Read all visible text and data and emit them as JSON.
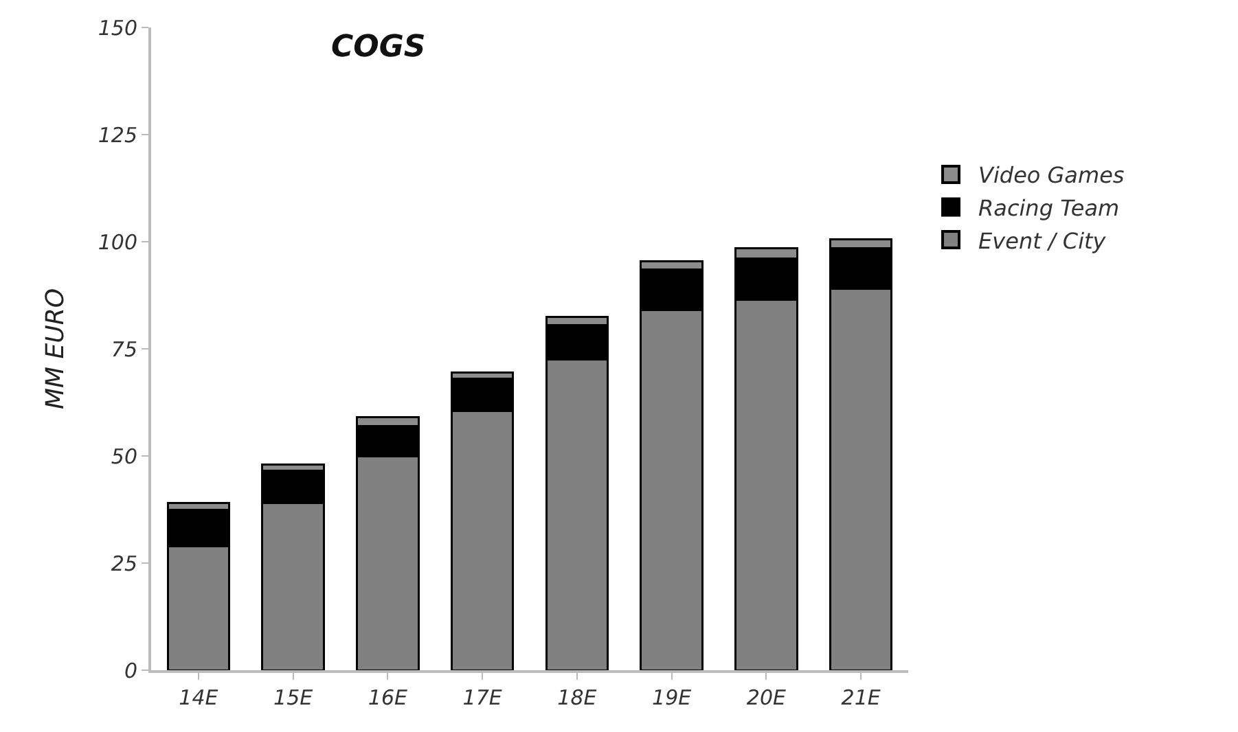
{
  "chart_data": {
    "type": "bar",
    "title": "COGS",
    "ylabel": "MM EURO",
    "stacked": true,
    "categories": [
      "14E",
      "15E",
      "16E",
      "17E",
      "18E",
      "19E",
      "20E",
      "21E"
    ],
    "series": [
      {
        "name": "Event / City",
        "color": "#808080",
        "values": [
          29,
          39,
          50,
          60.5,
          72.5,
          84,
          86.5,
          89
        ]
      },
      {
        "name": "Racing Team",
        "color": "#000000",
        "values": [
          8.5,
          7.5,
          7,
          7.5,
          8,
          9.5,
          9.5,
          9.5
        ]
      },
      {
        "name": "Video Games",
        "color": "#8c8c8c",
        "values": [
          1.5,
          1.5,
          2,
          1.5,
          2,
          2,
          2.5,
          2
        ]
      }
    ],
    "ylim": [
      0,
      150
    ],
    "yticks": [
      0,
      25,
      50,
      75,
      100,
      125,
      150
    ],
    "grid": false,
    "legend": "right"
  }
}
